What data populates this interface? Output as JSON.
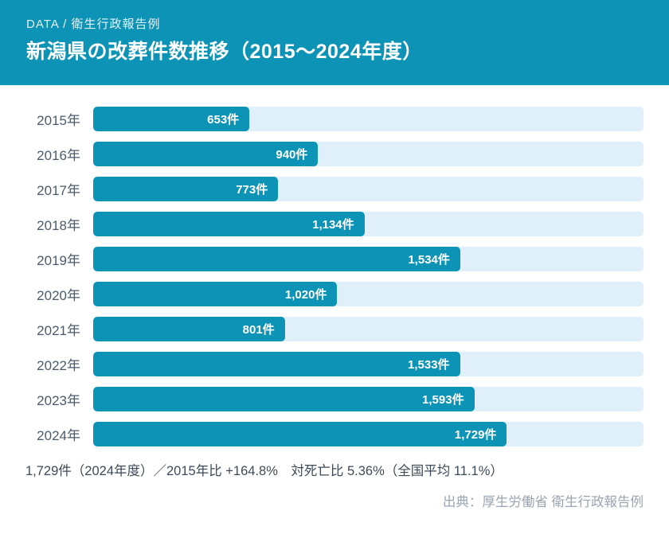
{
  "header": {
    "eyebrow": "DATA / 衛生行政報告例",
    "title": "新潟県の改葬件数推移（2015～2024年度）"
  },
  "chart_data": {
    "type": "bar",
    "orientation": "horizontal",
    "title": "新潟県の改葬件数推移（2015～2024年度）",
    "unit": "件",
    "categories": [
      "2015年",
      "2016年",
      "2017年",
      "2018年",
      "2019年",
      "2020年",
      "2021年",
      "2022年",
      "2023年",
      "2024年"
    ],
    "values": [
      653,
      940,
      773,
      1134,
      1534,
      1020,
      801,
      1533,
      1593,
      1729
    ],
    "value_labels": [
      "653件",
      "940件",
      "773件",
      "1,134件",
      "1,534件",
      "1,020件",
      "801件",
      "1,533件",
      "1,593件",
      "1,729件"
    ],
    "xlim": [
      0,
      2300
    ],
    "grid": false,
    "legend": false,
    "bar_color": "#0d93b5",
    "track_color": "#e0f0fb"
  },
  "footer": {
    "summary": "1,729件（2024年度）／2015年比 +164.8%　対死亡比 5.36%（全国平均 11.1%）",
    "source": "出典：厚生労働省 衛生行政報告例"
  },
  "colors": {
    "header_bg": "#0d93b5",
    "bar": "#0d93b5",
    "bar_track": "#e0f0fb",
    "year_label": "#4a5b6b",
    "summary_text": "#3d4a57",
    "source_text": "#9aa5b1",
    "page_bg": "#ffffff"
  }
}
